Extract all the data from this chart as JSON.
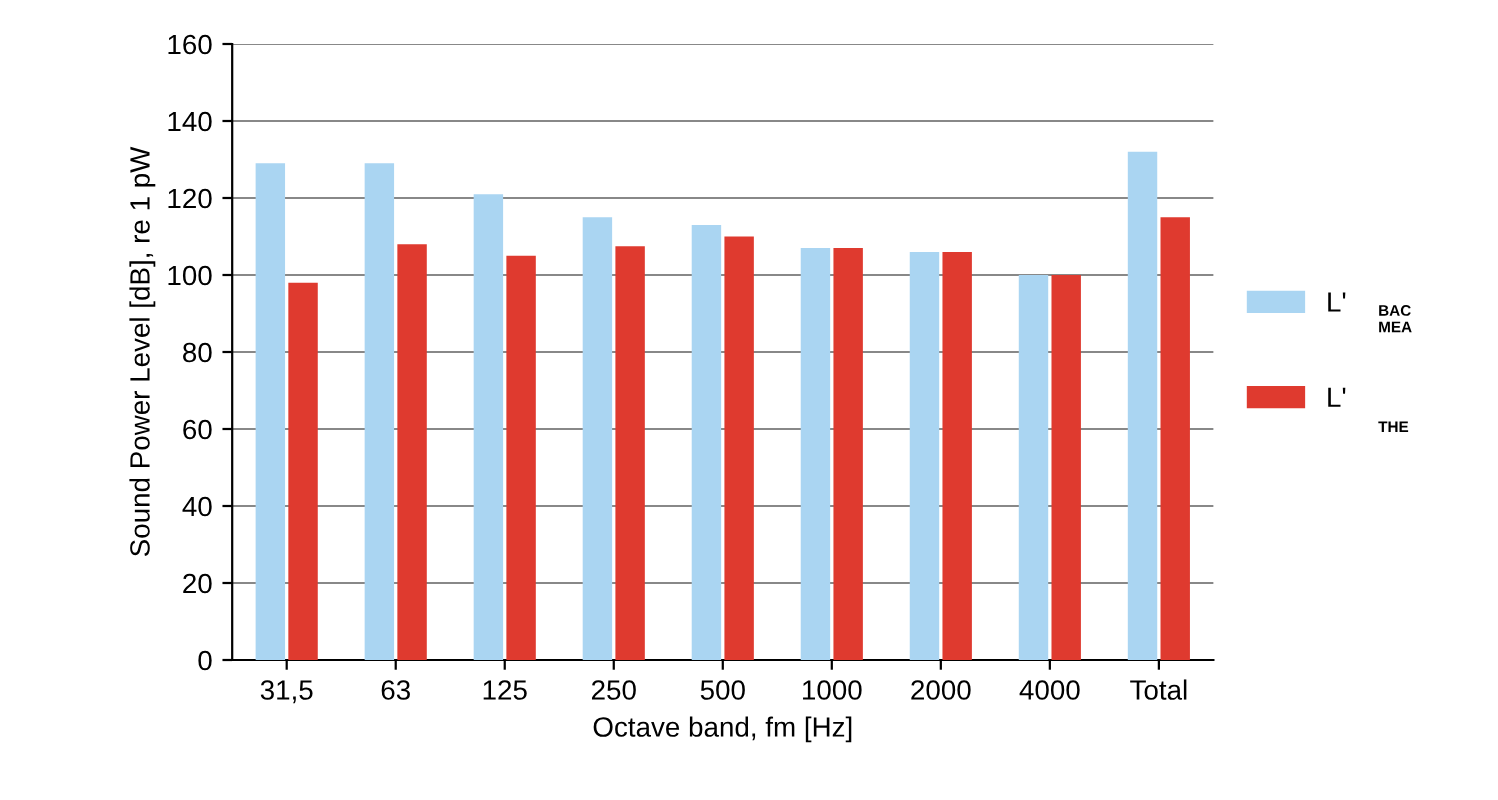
{
  "chart_data": {
    "type": "bar",
    "xlabel": "Octave band, fm [Hz]",
    "ylabel": "Sound Power Level [dB], re 1 pW",
    "categories": [
      "31,5",
      "63",
      "125",
      "250",
      "500",
      "1000",
      "2000",
      "4000",
      "Total"
    ],
    "series": [
      {
        "name": "L'",
        "color": "#aad5f2",
        "values": [
          129,
          129,
          121,
          115,
          113,
          107,
          106,
          100,
          132
        ]
      },
      {
        "name": "L'",
        "color": "#df3a2f",
        "values": [
          98,
          108,
          105,
          107.5,
          110,
          107,
          106,
          100,
          115
        ]
      }
    ],
    "ylim": [
      0,
      160
    ],
    "yticks": [
      0,
      20,
      40,
      60,
      80,
      100,
      120,
      140,
      160
    ],
    "grid": "y",
    "legend": "right",
    "annotations": [
      "BAC\nMEA",
      "THE"
    ]
  }
}
